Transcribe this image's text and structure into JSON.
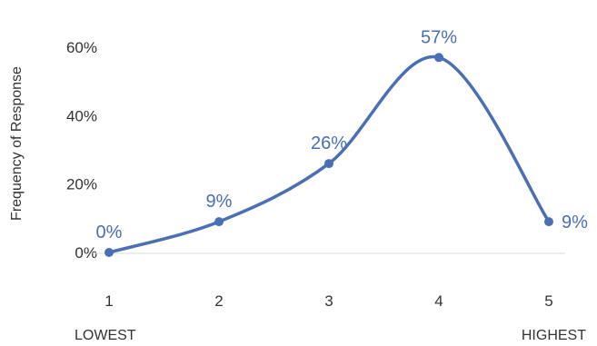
{
  "chart_data": {
    "type": "line",
    "title": "",
    "xlabel": "",
    "ylabel": "Frequency of Response",
    "categories": [
      "1",
      "2",
      "3",
      "4",
      "5"
    ],
    "series": [
      {
        "values": [
          0,
          9,
          26,
          57,
          9
        ]
      }
    ],
    "data_labels": [
      "0%",
      "9%",
      "26%",
      "57%",
      "9%"
    ],
    "y_ticks": [
      "0%",
      "20%",
      "40%",
      "60%"
    ],
    "y_tick_values": [
      0,
      20,
      40,
      60
    ],
    "ylim": [
      0,
      60
    ],
    "x_end_labels": {
      "left": "LOWEST",
      "right": "HIGHEST"
    },
    "smooth": true,
    "grid": false,
    "colors": {
      "line": "#4a6fb5",
      "label": "#4a6fb5",
      "axis": "#d9d9d9"
    }
  }
}
